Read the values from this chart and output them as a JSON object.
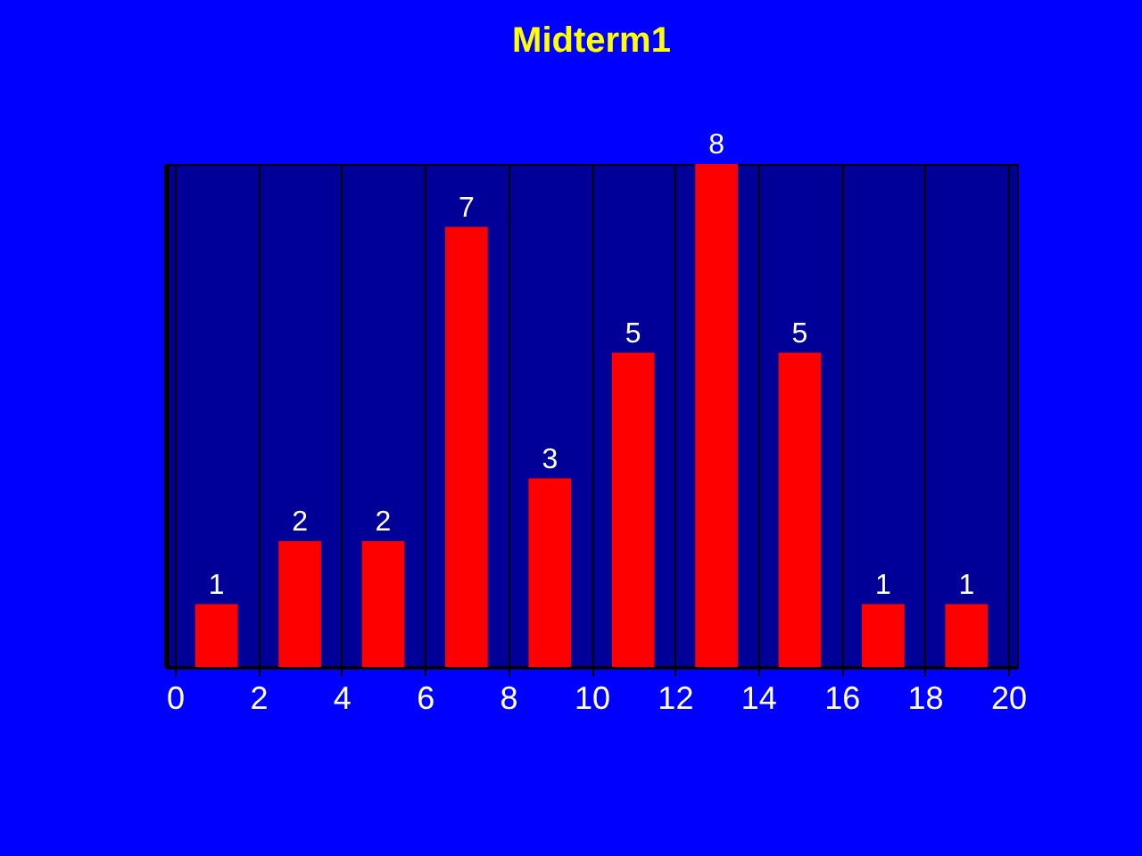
{
  "chart_data": {
    "type": "bar",
    "title": "Midterm1",
    "x": [
      1,
      3,
      5,
      7,
      9,
      11,
      13,
      15,
      17,
      19
    ],
    "values": [
      1,
      2,
      2,
      7,
      3,
      5,
      8,
      5,
      1,
      1
    ],
    "color": "#ff0000",
    "xlim": [
      0,
      20
    ],
    "xticks": [
      0,
      2,
      4,
      6,
      8,
      10,
      12,
      14,
      16,
      18,
      20
    ],
    "data_labels": true,
    "grid": "x",
    "tick_labels": "x"
  }
}
